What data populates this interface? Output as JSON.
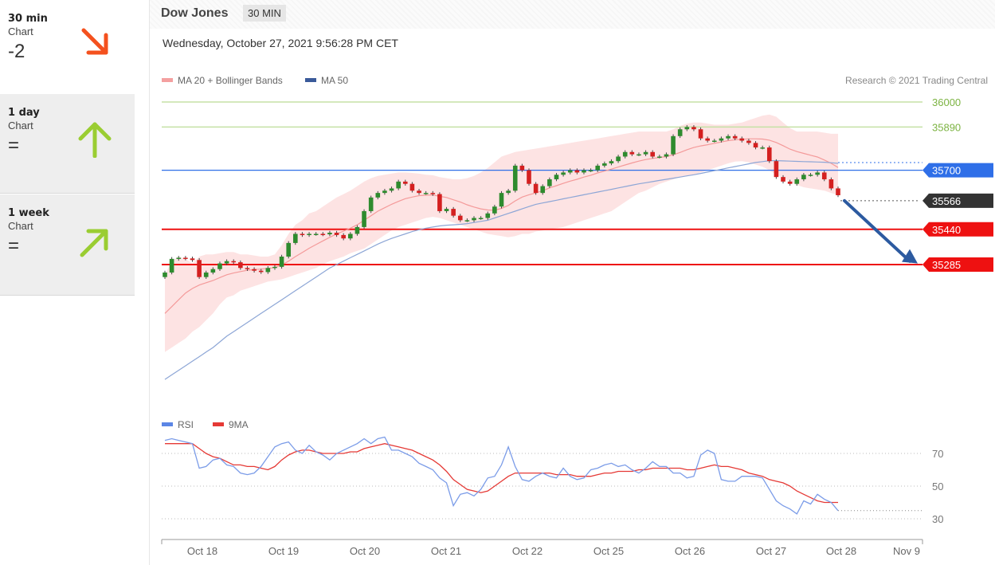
{
  "sidebar": {
    "items": [
      {
        "name": "30 min",
        "sub": "Chart",
        "score": "-2",
        "arrow": "arrow-down-right-icon",
        "color": "#f4511e"
      },
      {
        "name": "1 day",
        "sub": "Chart",
        "score": "=",
        "arrow": "arrow-up-icon",
        "color": "#9acd32"
      },
      {
        "name": "1 week",
        "sub": "Chart",
        "score": "=",
        "arrow": "arrow-up-right-icon",
        "color": "#9acd32"
      }
    ]
  },
  "header": {
    "title": "Dow Jones",
    "period": "30 MIN"
  },
  "date": "Wednesday, October 27, 2021 9:56:28 PM CET",
  "chart_data": [
    {
      "type": "candlestick",
      "legend": [
        {
          "name": "MA 20 + Bollinger Bands",
          "color": "#f4a0a0"
        },
        {
          "name": "MA 50",
          "color": "#3a5a9a"
        }
      ],
      "credit": "Research © 2021 Trading Central",
      "ylim": [
        35040,
        36060
      ],
      "x_labels": [
        "Oct 18",
        "Oct 19",
        "Oct 20",
        "Oct 21",
        "Oct 22",
        "Oct 25",
        "Oct 26",
        "Oct 27",
        "Oct 28",
        "Nov 9"
      ],
      "levels": [
        {
          "value": 36000,
          "label": "36000",
          "style": "text",
          "color": "#7cb342",
          "line": "#c5e1a5"
        },
        {
          "value": 35890,
          "label": "35890",
          "style": "text",
          "color": "#7cb342",
          "line": "#c5e1a5"
        },
        {
          "value": 35700,
          "label": "35700",
          "style": "tag",
          "color": "#2f6fe8",
          "line": "#2f6fe8"
        },
        {
          "value": 35566,
          "label": "35566",
          "style": "tag",
          "color": "#333333",
          "line": "dotted"
        },
        {
          "value": 35440,
          "label": "35440",
          "style": "tag",
          "color": "#ee1111",
          "line": "#ee1111"
        },
        {
          "value": 35285,
          "label": "35285",
          "style": "tag",
          "color": "#ee1111",
          "line": "#ee1111"
        }
      ],
      "close": [
        35250,
        35310,
        35315,
        35312,
        35305,
        35230,
        35250,
        35265,
        35290,
        35300,
        35295,
        35270,
        35265,
        35258,
        35252,
        35270,
        35275,
        35320,
        35380,
        35420,
        35415,
        35420,
        35420,
        35418,
        35425,
        35415,
        35400,
        35420,
        35450,
        35520,
        35580,
        35600,
        35610,
        35620,
        35650,
        35640,
        35610,
        35600,
        35600,
        35595,
        35520,
        35530,
        35500,
        35480,
        35480,
        35490,
        35490,
        35510,
        35540,
        35600,
        35610,
        35720,
        35700,
        35640,
        35600,
        35630,
        35660,
        35680,
        35690,
        35700,
        35690,
        35700,
        35700,
        35720,
        35730,
        35740,
        35760,
        35780,
        35770,
        35770,
        35780,
        35760,
        35760,
        35770,
        35850,
        35880,
        35890,
        35880,
        35840,
        35830,
        35830,
        35840,
        35850,
        35840,
        35830,
        35820,
        35800,
        35800,
        35740,
        35670,
        35650,
        35640,
        35660,
        35680,
        35680,
        35690,
        35660,
        35620,
        35590
      ],
      "ma20": [
        35070,
        35100,
        35130,
        35160,
        35180,
        35195,
        35205,
        35215,
        35228,
        35240,
        35248,
        35254,
        35260,
        35263,
        35265,
        35268,
        35272,
        35283,
        35300,
        35320,
        35338,
        35357,
        35373,
        35389,
        35405,
        35420,
        35432,
        35445,
        35460,
        35480,
        35500,
        35520,
        35535,
        35550,
        35563,
        35575,
        35582,
        35588,
        35590,
        35591,
        35585,
        35580,
        35570,
        35560,
        35548,
        35538,
        35530,
        35525,
        35524,
        35532,
        35545,
        35565,
        35582,
        35592,
        35600,
        35610,
        35622,
        35632,
        35642,
        35652,
        35660,
        35670,
        35678,
        35688,
        35696,
        35705,
        35714,
        35723,
        35732,
        35740,
        35747,
        35752,
        35756,
        35760,
        35768,
        35778,
        35790,
        35800,
        35807,
        35812,
        35818,
        35824,
        35830,
        35834,
        35836,
        35838,
        35838,
        35837,
        35832,
        35822,
        35808,
        35793,
        35782,
        35774,
        35766,
        35758,
        35745,
        35730,
        35712
      ],
      "bb_upper": [
        35240,
        35300,
        35320,
        35310,
        35290,
        35320,
        35330,
        35330,
        35335,
        35340,
        35340,
        35330,
        35330,
        35325,
        35320,
        35320,
        35330,
        35370,
        35420,
        35460,
        35480,
        35510,
        35520,
        35540,
        35560,
        35580,
        35595,
        35610,
        35630,
        35650,
        35665,
        35675,
        35680,
        35685,
        35690,
        35690,
        35688,
        35685,
        35680,
        35678,
        35670,
        35665,
        35660,
        35660,
        35665,
        35675,
        35690,
        35710,
        35735,
        35760,
        35770,
        35780,
        35785,
        35790,
        35795,
        35800,
        35805,
        35810,
        35815,
        35820,
        35825,
        35830,
        35835,
        35840,
        35845,
        35850,
        35855,
        35860,
        35865,
        35870,
        35870,
        35870,
        35870,
        35870,
        35880,
        35895,
        35905,
        35910,
        35910,
        35905,
        35900,
        35900,
        35900,
        35905,
        35910,
        35920,
        35930,
        35940,
        35945,
        35935,
        35910,
        35885,
        35870,
        35870,
        35870,
        35870,
        35865,
        35860,
        35860
      ],
      "bb_lower": [
        34900,
        34920,
        34940,
        34960,
        34990,
        35010,
        35040,
        35070,
        35110,
        35140,
        35150,
        35170,
        35180,
        35190,
        35200,
        35210,
        35215,
        35220,
        35230,
        35240,
        35250,
        35260,
        35270,
        35285,
        35300,
        35310,
        35320,
        35335,
        35345,
        35355,
        35375,
        35395,
        35415,
        35435,
        35450,
        35460,
        35470,
        35480,
        35490,
        35495,
        35490,
        35480,
        35470,
        35460,
        35450,
        35440,
        35430,
        35420,
        35415,
        35410,
        35405,
        35410,
        35420,
        35420,
        35430,
        35435,
        35440,
        35445,
        35450,
        35460,
        35470,
        35480,
        35490,
        35500,
        35510,
        35520,
        35540,
        35560,
        35580,
        35600,
        35610,
        35625,
        35640,
        35650,
        35660,
        35670,
        35675,
        35680,
        35690,
        35700,
        35710,
        35720,
        35730,
        35738,
        35740,
        35735,
        35725,
        35715,
        35700,
        35680,
        35665,
        35650,
        35635,
        35625,
        35620,
        35615,
        35610,
        35600,
        35590
      ],
      "ma50": [
        34780,
        34800,
        34820,
        34840,
        34860,
        34880,
        34900,
        34920,
        34945,
        34970,
        34990,
        35010,
        35030,
        35050,
        35070,
        35090,
        35110,
        35130,
        35150,
        35170,
        35190,
        35210,
        35230,
        35250,
        35270,
        35285,
        35300,
        35315,
        35330,
        35345,
        35360,
        35375,
        35388,
        35400,
        35410,
        35420,
        35430,
        35438,
        35445,
        35450,
        35455,
        35458,
        35460,
        35462,
        35465,
        35470,
        35475,
        35480,
        35490,
        35500,
        35510,
        35520,
        35530,
        35540,
        35550,
        35556,
        35562,
        35568,
        35574,
        35580,
        35586,
        35592,
        35598,
        35604,
        35610,
        35616,
        35622,
        35628,
        35634,
        35640,
        35645,
        35650,
        35655,
        35660,
        35665,
        35670,
        35675,
        35680,
        35686,
        35692,
        35698,
        35704,
        35710,
        35716,
        35722,
        35728,
        35734,
        35738,
        35742,
        35742,
        35741,
        35740,
        35739,
        35738,
        35737,
        35736,
        35735,
        35733,
        35730
      ]
    },
    {
      "type": "line",
      "legend": [
        {
          "name": "RSI",
          "color": "#5b86e5"
        },
        {
          "name": "9MA",
          "color": "#e53935"
        }
      ],
      "ylim": [
        25,
        85
      ],
      "y_ticks": [
        70,
        50,
        30
      ],
      "rsi": [
        78,
        79,
        78,
        77,
        76,
        61,
        62,
        66,
        67,
        63,
        62,
        58,
        57,
        58,
        62,
        68,
        74,
        76,
        77,
        72,
        70,
        75,
        71,
        69,
        66,
        70,
        72,
        74,
        76,
        79,
        76,
        79,
        80,
        72,
        72,
        70,
        68,
        64,
        62,
        60,
        55,
        52,
        38,
        45,
        46,
        44,
        48,
        55,
        56,
        63,
        74,
        62,
        54,
        53,
        56,
        58,
        56,
        55,
        61,
        56,
        54,
        55,
        60,
        61,
        63,
        64,
        62,
        63,
        60,
        58,
        61,
        65,
        62,
        62,
        58,
        58,
        55,
        56,
        69,
        72,
        70,
        54,
        53,
        53,
        56,
        56,
        56,
        55,
        48,
        41,
        38,
        36,
        33,
        41,
        39,
        45,
        42,
        40,
        35
      ],
      "ma9": [
        76,
        76,
        76,
        76,
        76,
        73,
        70,
        68,
        67,
        65,
        63,
        63,
        62,
        62,
        61,
        60,
        62,
        66,
        69,
        71,
        72,
        72,
        71,
        70,
        70,
        70,
        70,
        71,
        71,
        73,
        74,
        75,
        76,
        75,
        74,
        73,
        72,
        70,
        68,
        66,
        63,
        59,
        54,
        51,
        48,
        47,
        46,
        47,
        50,
        53,
        56,
        58,
        58,
        58,
        58,
        58,
        58,
        57,
        57,
        57,
        56,
        56,
        56,
        57,
        58,
        58,
        59,
        59,
        59,
        60,
        60,
        61,
        61,
        61,
        61,
        61,
        60,
        60,
        61,
        62,
        63,
        62,
        62,
        61,
        60,
        58,
        57,
        56,
        54,
        53,
        52,
        50,
        47,
        45,
        43,
        41,
        40,
        40,
        40
      ]
    }
  ]
}
